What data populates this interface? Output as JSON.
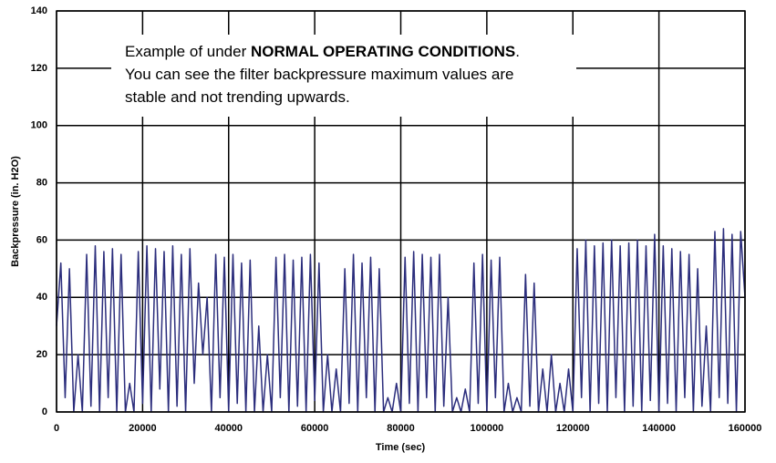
{
  "chart_data": {
    "type": "line",
    "xlabel": "Time (sec)",
    "ylabel": "Backpressure (in. H2O)",
    "annotation": {
      "first_line": [
        "Example of under ",
        "NORMAL OPERATING CONDITIONS",
        "."
      ],
      "lines": [
        "You can see the filter backpressure maximum values are",
        "stable and not trending upwards."
      ]
    },
    "x": [
      0,
      1000,
      2000,
      3000,
      4000,
      5000,
      6000,
      7000,
      8000,
      9000,
      10000,
      11000,
      12000,
      13000,
      14000,
      15000,
      16000,
      17000,
      18000,
      19000,
      20000,
      21000,
      22000,
      23000,
      24000,
      25000,
      26000,
      27000,
      28000,
      29000,
      30000,
      31000,
      32000,
      33000,
      34000,
      35000,
      36000,
      37000,
      38000,
      39000,
      40000,
      41000,
      42000,
      43000,
      44000,
      45000,
      46000,
      47000,
      48000,
      49000,
      50000,
      51000,
      52000,
      53000,
      54000,
      55000,
      56000,
      57000,
      58000,
      59000,
      60000,
      61000,
      62000,
      63000,
      64000,
      65000,
      66000,
      67000,
      68000,
      69000,
      70000,
      71000,
      72000,
      73000,
      74000,
      75000,
      76000,
      77000,
      78000,
      79000,
      80000,
      81000,
      82000,
      83000,
      84000,
      85000,
      86000,
      87000,
      88000,
      89000,
      90000,
      91000,
      92000,
      93000,
      94000,
      95000,
      96000,
      97000,
      98000,
      99000,
      100000,
      101000,
      102000,
      103000,
      104000,
      105000,
      106000,
      107000,
      108000,
      109000,
      110000,
      111000,
      112000,
      113000,
      114000,
      115000,
      116000,
      117000,
      118000,
      119000,
      120000,
      121000,
      122000,
      123000,
      124000,
      125000,
      126000,
      127000,
      128000,
      129000,
      130000,
      131000,
      132000,
      133000,
      134000,
      135000,
      136000,
      137000,
      138000,
      139000,
      140000,
      141000,
      142000,
      143000,
      144000,
      145000,
      146000,
      147000,
      148000,
      149000,
      150000,
      151000,
      152000,
      153000,
      154000,
      155000,
      156000,
      157000,
      158000,
      159000,
      160000
    ],
    "values": [
      30,
      52,
      5,
      50,
      0,
      20,
      0,
      55,
      2,
      58,
      0,
      56,
      5,
      57,
      0,
      55,
      0,
      10,
      0,
      56,
      3,
      58,
      0,
      57,
      8,
      56,
      0,
      58,
      2,
      55,
      0,
      57,
      10,
      45,
      20,
      40,
      0,
      55,
      5,
      54,
      0,
      55,
      3,
      52,
      0,
      53,
      0,
      30,
      0,
      20,
      0,
      54,
      5,
      55,
      0,
      53,
      2,
      54,
      0,
      55,
      4,
      52,
      0,
      20,
      0,
      15,
      0,
      50,
      3,
      55,
      0,
      52,
      5,
      54,
      0,
      50,
      0,
      5,
      0,
      10,
      0,
      54,
      3,
      56,
      0,
      55,
      5,
      54,
      0,
      55,
      2,
      40,
      0,
      5,
      0,
      8,
      0,
      52,
      3,
      55,
      0,
      53,
      5,
      54,
      0,
      10,
      0,
      5,
      0,
      48,
      2,
      45,
      0,
      15,
      0,
      20,
      0,
      10,
      0,
      15,
      0,
      57,
      5,
      60,
      0,
      58,
      3,
      59,
      0,
      60,
      5,
      58,
      0,
      59,
      2,
      60,
      0,
      58,
      4,
      62,
      0,
      58,
      3,
      57,
      0,
      56,
      5,
      55,
      0,
      50,
      2,
      30,
      0,
      63,
      5,
      64,
      3,
      62,
      0,
      63,
      40
    ],
    "color": "#2b2d7c",
    "xlim": [
      0,
      160000
    ],
    "xticks": [
      0,
      20000,
      40000,
      60000,
      80000,
      100000,
      120000,
      140000,
      160000
    ],
    "ylim": [
      0,
      140
    ],
    "yticks": [
      0,
      20,
      40,
      60,
      80,
      100,
      120,
      140
    ],
    "grid": true
  }
}
